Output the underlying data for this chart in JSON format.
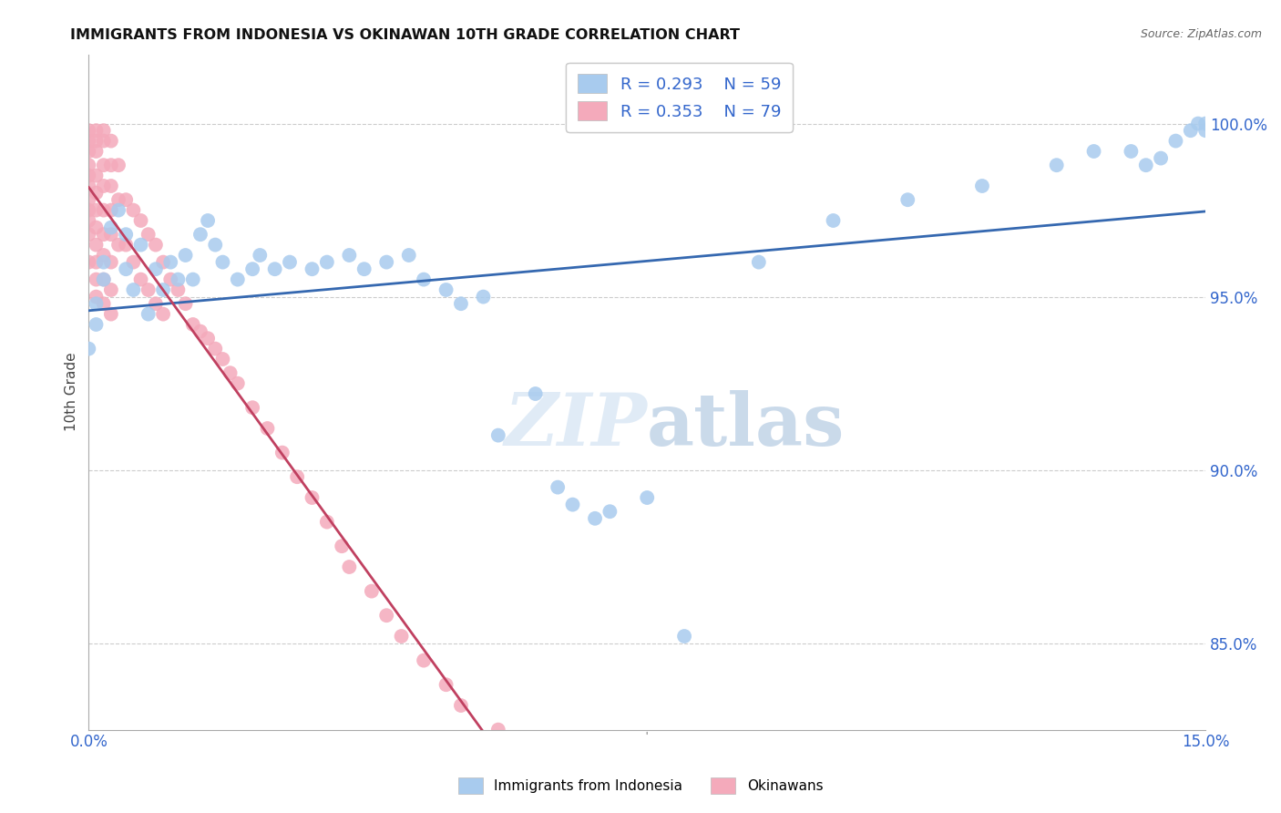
{
  "title": "IMMIGRANTS FROM INDONESIA VS OKINAWAN 10TH GRADE CORRELATION CHART",
  "source": "Source: ZipAtlas.com",
  "ylabel": "10th Grade",
  "ytick_labels": [
    "85.0%",
    "90.0%",
    "95.0%",
    "100.0%"
  ],
  "ytick_values": [
    0.85,
    0.9,
    0.95,
    1.0
  ],
  "legend_blue_r": "R = 0.293",
  "legend_blue_n": "N = 59",
  "legend_pink_r": "R = 0.353",
  "legend_pink_n": "N = 79",
  "legend_label_blue": "Immigrants from Indonesia",
  "legend_label_pink": "Okinawans",
  "blue_color": "#A8CBEE",
  "pink_color": "#F4AABB",
  "trendline_blue_color": "#3568B0",
  "trendline_pink_color": "#C04060",
  "watermark_zip": "ZIP",
  "watermark_atlas": "atlas",
  "blue_x": [
    0.0,
    0.001,
    0.001,
    0.002,
    0.002,
    0.003,
    0.004,
    0.005,
    0.005,
    0.006,
    0.007,
    0.008,
    0.009,
    0.01,
    0.011,
    0.012,
    0.013,
    0.014,
    0.015,
    0.016,
    0.017,
    0.018,
    0.02,
    0.022,
    0.023,
    0.025,
    0.027,
    0.03,
    0.032,
    0.035,
    0.037,
    0.04,
    0.043,
    0.045,
    0.048,
    0.05,
    0.053,
    0.055,
    0.06,
    0.063,
    0.065,
    0.068,
    0.07,
    0.075,
    0.08,
    0.09,
    0.1,
    0.11,
    0.12,
    0.13,
    0.135,
    0.14,
    0.142,
    0.144,
    0.146,
    0.148,
    0.149,
    0.15,
    0.15
  ],
  "blue_y": [
    0.935,
    0.948,
    0.942,
    0.96,
    0.955,
    0.97,
    0.975,
    0.968,
    0.958,
    0.952,
    0.965,
    0.945,
    0.958,
    0.952,
    0.96,
    0.955,
    0.962,
    0.955,
    0.968,
    0.972,
    0.965,
    0.96,
    0.955,
    0.958,
    0.962,
    0.958,
    0.96,
    0.958,
    0.96,
    0.962,
    0.958,
    0.96,
    0.962,
    0.955,
    0.952,
    0.948,
    0.95,
    0.91,
    0.922,
    0.895,
    0.89,
    0.886,
    0.888,
    0.892,
    0.852,
    0.96,
    0.972,
    0.978,
    0.982,
    0.988,
    0.992,
    0.992,
    0.988,
    0.99,
    0.995,
    0.998,
    1.0,
    0.998,
    1.0
  ],
  "pink_x": [
    0.0,
    0.0,
    0.0,
    0.0,
    0.0,
    0.0,
    0.0,
    0.0,
    0.0,
    0.0,
    0.0,
    0.001,
    0.001,
    0.001,
    0.001,
    0.001,
    0.001,
    0.001,
    0.001,
    0.001,
    0.001,
    0.001,
    0.002,
    0.002,
    0.002,
    0.002,
    0.002,
    0.002,
    0.002,
    0.002,
    0.002,
    0.003,
    0.003,
    0.003,
    0.003,
    0.003,
    0.003,
    0.003,
    0.003,
    0.004,
    0.004,
    0.004,
    0.005,
    0.005,
    0.006,
    0.006,
    0.007,
    0.007,
    0.008,
    0.008,
    0.009,
    0.009,
    0.01,
    0.01,
    0.011,
    0.012,
    0.013,
    0.014,
    0.015,
    0.016,
    0.017,
    0.018,
    0.019,
    0.02,
    0.022,
    0.024,
    0.026,
    0.028,
    0.03,
    0.032,
    0.034,
    0.035,
    0.038,
    0.04,
    0.042,
    0.045,
    0.048,
    0.05,
    0.055
  ],
  "pink_y": [
    0.998,
    0.995,
    0.992,
    0.988,
    0.985,
    0.982,
    0.978,
    0.975,
    0.972,
    0.968,
    0.96,
    0.998,
    0.995,
    0.992,
    0.985,
    0.98,
    0.975,
    0.97,
    0.965,
    0.96,
    0.955,
    0.95,
    0.998,
    0.995,
    0.988,
    0.982,
    0.975,
    0.968,
    0.962,
    0.955,
    0.948,
    0.995,
    0.988,
    0.982,
    0.975,
    0.968,
    0.96,
    0.952,
    0.945,
    0.988,
    0.978,
    0.965,
    0.978,
    0.965,
    0.975,
    0.96,
    0.972,
    0.955,
    0.968,
    0.952,
    0.965,
    0.948,
    0.96,
    0.945,
    0.955,
    0.952,
    0.948,
    0.942,
    0.94,
    0.938,
    0.935,
    0.932,
    0.928,
    0.925,
    0.918,
    0.912,
    0.905,
    0.898,
    0.892,
    0.885,
    0.878,
    0.872,
    0.865,
    0.858,
    0.852,
    0.845,
    0.838,
    0.832,
    0.825
  ]
}
